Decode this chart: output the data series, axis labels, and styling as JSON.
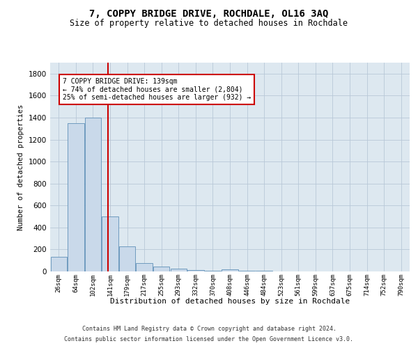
{
  "title": "7, COPPY BRIDGE DRIVE, ROCHDALE, OL16 3AQ",
  "subtitle": "Size of property relative to detached houses in Rochdale",
  "xlabel": "Distribution of detached houses by size in Rochdale",
  "ylabel": "Number of detached properties",
  "bar_color": "#c9d9ea",
  "bar_edge_color": "#6090b8",
  "plot_bg_color": "#dde8f0",
  "background_color": "#ffffff",
  "grid_color": "#b8c8d8",
  "categories": [
    "26sqm",
    "64sqm",
    "102sqm",
    "141sqm",
    "179sqm",
    "217sqm",
    "255sqm",
    "293sqm",
    "332sqm",
    "370sqm",
    "408sqm",
    "446sqm",
    "484sqm",
    "523sqm",
    "561sqm",
    "599sqm",
    "637sqm",
    "675sqm",
    "714sqm",
    "752sqm",
    "790sqm"
  ],
  "values": [
    135,
    1350,
    1400,
    500,
    225,
    75,
    45,
    25,
    15,
    5,
    20,
    5,
    5,
    0,
    0,
    0,
    0,
    0,
    0,
    0,
    0
  ],
  "ylim": [
    0,
    1900
  ],
  "yticks": [
    0,
    200,
    400,
    600,
    800,
    1000,
    1200,
    1400,
    1600,
    1800
  ],
  "property_line_x": 2.87,
  "property_line_color": "#cc0000",
  "annotation_text": "7 COPPY BRIDGE DRIVE: 139sqm\n← 74% of detached houses are smaller (2,804)\n25% of semi-detached houses are larger (932) →",
  "annotation_box_color": "#ffffff",
  "annotation_box_edge_color": "#cc0000",
  "footer_line1": "Contains HM Land Registry data © Crown copyright and database right 2024.",
  "footer_line2": "Contains public sector information licensed under the Open Government Licence v3.0."
}
